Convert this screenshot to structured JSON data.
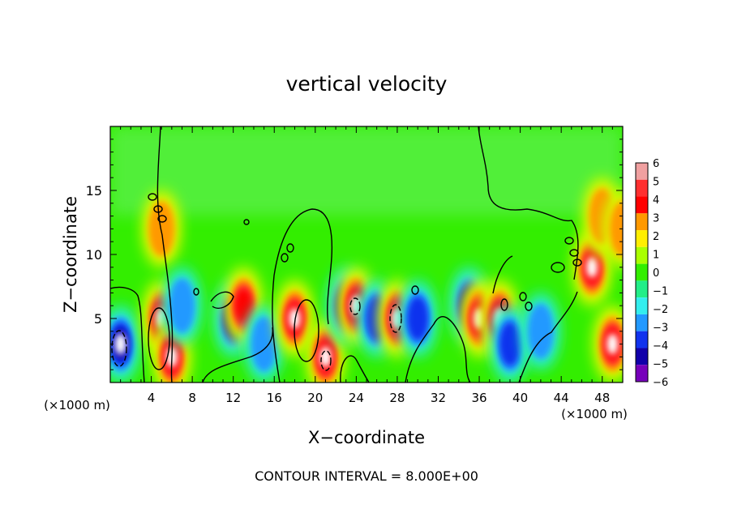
{
  "chart_data": {
    "type": "heatmap",
    "title": "vertical velocity",
    "xlabel": "X−coordinate",
    "ylabel": "Z−coordinate",
    "x_unit_left": "(×1000 m)",
    "x_unit_right": "(×1000 m)",
    "footer": "CONTOUR INTERVAL = 8.000E+00",
    "xlim": [
      0,
      50
    ],
    "ylim": [
      0,
      20
    ],
    "x_ticks": [
      4,
      8,
      12,
      16,
      20,
      24,
      28,
      32,
      36,
      40,
      44,
      48
    ],
    "x_tick_labels": [
      "4",
      "8",
      "12",
      "16",
      "20",
      "24",
      "28",
      "32",
      "36",
      "40",
      "44",
      "48"
    ],
    "y_ticks": [
      5,
      10,
      15
    ],
    "y_tick_labels": [
      "5",
      "10",
      "15"
    ],
    "colorbar": {
      "levels": [
        6,
        5,
        4,
        3,
        2,
        1,
        0,
        -1,
        -2,
        -3,
        -4,
        -5,
        -6
      ],
      "labels": [
        "6",
        "5",
        "4",
        "3",
        "2",
        "1",
        "0",
        "−1",
        "−2",
        "−3",
        "−4",
        "−5",
        "−6"
      ],
      "colors": [
        "#f0a0a0",
        "#ff3030",
        "#ff0000",
        "#ff9900",
        "#ffee00",
        "#aaff00",
        "#33ee00",
        "#22ee88",
        "#33eeee",
        "#2299ff",
        "#1133ee",
        "#1100aa",
        "#7700bb"
      ]
    },
    "cells": [
      {
        "x": 1,
        "z": 3,
        "value": -8
      },
      {
        "x": 5,
        "z": 5,
        "value": 8
      },
      {
        "x": 5,
        "z": 12,
        "value": 3
      },
      {
        "x": 6,
        "z": 2,
        "value": 6
      },
      {
        "x": 7,
        "z": 6,
        "value": -3
      },
      {
        "x": 12,
        "z": 5,
        "value": -5
      },
      {
        "x": 13,
        "z": 6,
        "value": 5
      },
      {
        "x": 15,
        "z": 3,
        "value": -3
      },
      {
        "x": 18,
        "z": 5,
        "value": 8
      },
      {
        "x": 21,
        "z": 2,
        "value": 6
      },
      {
        "x": 23,
        "z": 6,
        "value": -5
      },
      {
        "x": 24,
        "z": 6,
        "value": 7
      },
      {
        "x": 26,
        "z": 5,
        "value": -4
      },
      {
        "x": 28,
        "z": 5,
        "value": 8
      },
      {
        "x": 30,
        "z": 5,
        "value": -4
      },
      {
        "x": 35,
        "z": 6,
        "value": -5
      },
      {
        "x": 36,
        "z": 5,
        "value": 6
      },
      {
        "x": 38,
        "z": 5,
        "value": 6
      },
      {
        "x": 39,
        "z": 3,
        "value": -4
      },
      {
        "x": 42,
        "z": 4,
        "value": -3
      },
      {
        "x": 47,
        "z": 9,
        "value": 7
      },
      {
        "x": 48,
        "z": 13,
        "value": 3
      },
      {
        "x": 49,
        "z": 3,
        "value": 6
      },
      {
        "x": 50,
        "z": 12,
        "value": 3
      }
    ]
  }
}
